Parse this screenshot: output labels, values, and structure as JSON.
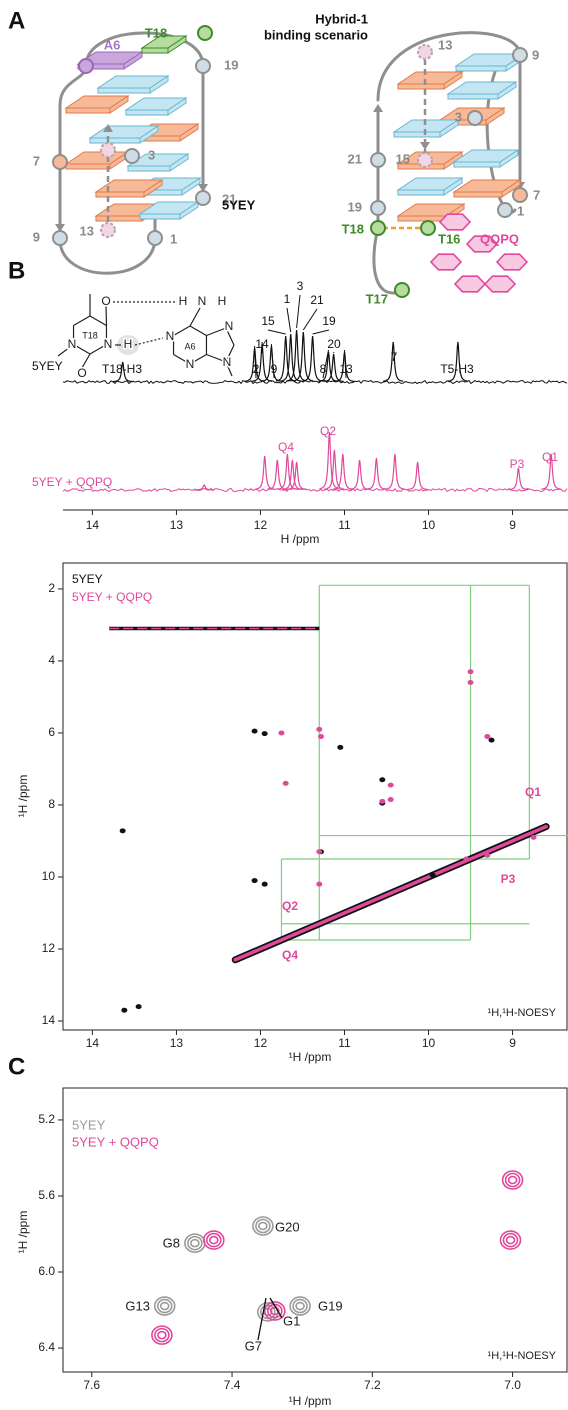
{
  "panel_a": {
    "label": "A",
    "left": {
      "name": "5YEY",
      "a6": "A6",
      "t18": "T18",
      "residues": [
        "19",
        "7",
        "3",
        "13",
        "9",
        "1",
        "21"
      ]
    },
    "right": {
      "title": "Hybrid-1",
      "subtitle": "binding scenario",
      "residues": [
        "13",
        "9",
        "21",
        "3",
        "15",
        "7",
        "19",
        "1"
      ],
      "t18": "T18",
      "t16": "T16",
      "t17": "T17",
      "ligand": "QQPQ"
    }
  },
  "panel_b": {
    "label": "B",
    "structure": {
      "base1": "T18",
      "base2": "A6",
      "atoms": [
        "O",
        "H",
        "N",
        "H",
        "N",
        "H",
        "N",
        "O",
        "N",
        "N",
        "N",
        "N"
      ]
    },
    "spectrum": {
      "type": "spectrum",
      "xlim": [
        14.35,
        8.34
      ],
      "xticks": [
        14,
        13,
        12,
        11,
        10,
        9
      ],
      "xlabel": "H /ppm",
      "series": [
        {
          "name": "5YEY",
          "color": "#111111",
          "peaks": [
            13.64,
            12.07,
            11.98,
            11.87,
            11.7,
            11.64,
            11.57,
            11.49,
            11.38,
            11.19,
            11.13,
            11.0,
            10.42,
            9.65
          ],
          "labels": [
            "T18-H3",
            "2",
            "14",
            "9",
            "15",
            "1",
            "3",
            "21",
            "19",
            "8",
            "20",
            "13",
            "7",
            "T5-H3"
          ]
        },
        {
          "name": "5YEY + QQPQ",
          "color": "#e0489c",
          "peaks": [
            12.67,
            11.95,
            11.8,
            11.68,
            11.62,
            11.57,
            11.18,
            11.12,
            11.02,
            10.82,
            10.62,
            10.4,
            10.13,
            8.93,
            8.54
          ],
          "labels": [
            null,
            null,
            null,
            "Q4",
            null,
            null,
            "Q2",
            null,
            null,
            null,
            null,
            null,
            null,
            "P3",
            "Q1"
          ]
        }
      ]
    },
    "noesy": {
      "type": "scatter",
      "xlim": [
        14.35,
        8.34
      ],
      "ylim": [
        1.28,
        14.25
      ],
      "xticks": [
        14,
        13,
        12,
        11,
        10,
        9
      ],
      "yticks": [
        2,
        4,
        6,
        8,
        10,
        12,
        14
      ],
      "xlabel": "¹H /ppm",
      "ylabel": "¹H /ppm",
      "experiment": "¹H,¹H-NOESY",
      "series": [
        {
          "name": "5YEY",
          "color": "#111111",
          "x": [
            13.64,
            13.62,
            13.45,
            12.07,
            11.95,
            11.28,
            11.05,
            10.55,
            10.55,
            9.25,
            12.07,
            11.95,
            9.95
          ],
          "y": [
            8.72,
            13.7,
            13.6,
            5.95,
            6.02,
            9.3,
            6.4,
            7.3,
            7.95,
            6.2,
            10.1,
            10.2,
            9.95
          ]
        },
        {
          "name": "5YEY + QQPQ",
          "color": "#e0489c",
          "x": [
            11.75,
            11.3,
            11.28,
            10.45,
            10.45,
            10.55,
            11.7,
            9.5,
            9.5,
            9.3,
            9.55,
            9.3,
            8.75,
            11.3,
            11.3
          ],
          "y": [
            6.0,
            5.9,
            6.1,
            7.45,
            7.85,
            7.9,
            7.4,
            4.3,
            4.6,
            6.1,
            9.5,
            9.4,
            8.9,
            9.3,
            10.2
          ]
        }
      ],
      "diagonal": [
        12.3,
        8.6
      ],
      "solvent_band": {
        "y": 3.1,
        "x": [
          13.8,
          11.3
        ]
      },
      "assignments": [
        "Q1",
        "P3",
        "Q2",
        "Q4"
      ],
      "walk": {
        "color": "#7fcf7f",
        "lines": [
          [
            11.3,
            1.9,
            11.3,
            11.75
          ],
          [
            9.5,
            1.9,
            9.5,
            11.75
          ],
          [
            8.8,
            1.9,
            8.8,
            9.5
          ],
          [
            11.75,
            9.5,
            11.75,
            11.75
          ],
          [
            11.3,
            1.9,
            8.8,
            1.9
          ],
          [
            11.3,
            8.85,
            8.34,
            8.85
          ],
          [
            11.75,
            9.5,
            8.8,
            9.5
          ],
          [
            11.75,
            11.3,
            8.8,
            11.3
          ],
          [
            11.75,
            11.75,
            9.5,
            11.75
          ]
        ]
      }
    }
  },
  "panel_c": {
    "label": "C",
    "type": "contour",
    "xlim": [
      7.641,
      6.921
    ],
    "ylim": [
      5.032,
      6.526
    ],
    "xticks": [
      7.6,
      7.4,
      7.2,
      {
        "value": 7.0,
        "label": "7.0"
      }
    ],
    "yticks": [
      5.2,
      5.6,
      {
        "value": 6.0,
        "label": "6.0"
      },
      6.4
    ],
    "xlabel": "¹H /ppm",
    "ylabel": "¹H /ppm",
    "experiment": "¹H,¹H-NOESY",
    "series": [
      {
        "name": "5YEY",
        "color": "#9a9a9a",
        "x": [
          7.453,
          7.356,
          7.496,
          7.303,
          7.349
        ],
        "y": [
          5.848,
          5.758,
          6.179,
          6.179,
          6.21
        ]
      },
      {
        "name": "5YEY + QQPQ",
        "color": "#e0489c",
        "x": [
          7.426,
          7.339,
          7.5,
          7.0,
          7.003
        ],
        "y": [
          5.832,
          6.205,
          6.332,
          5.516,
          5.832
        ]
      }
    ],
    "assignments": [
      "G8",
      "G20",
      "G13",
      "G19",
      "G1",
      "G7"
    ]
  }
}
